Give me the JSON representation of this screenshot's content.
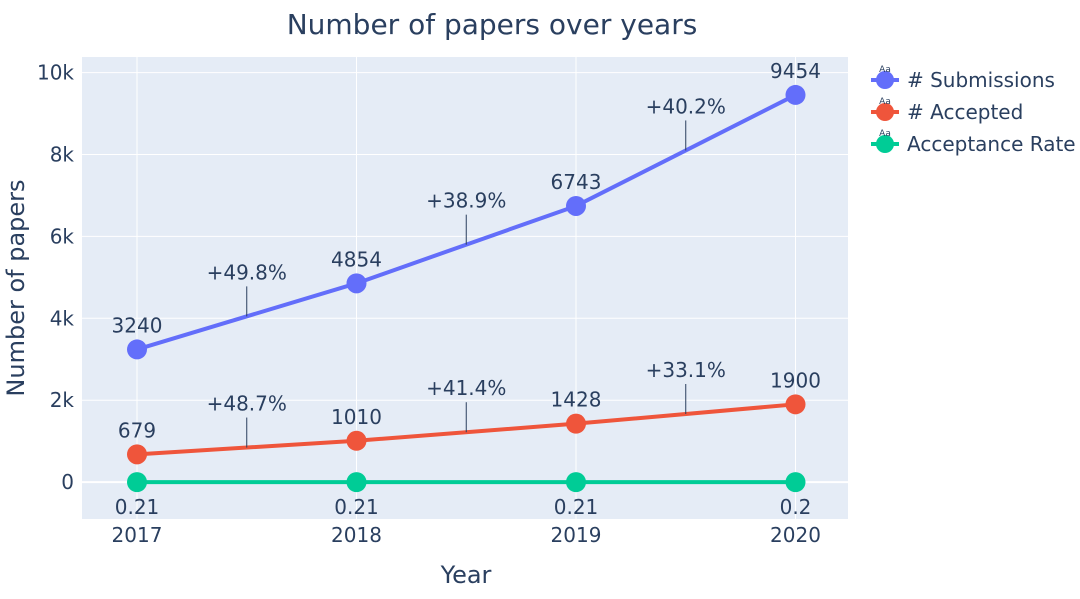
{
  "chart_data": {
    "type": "line",
    "title": "Number of papers over years",
    "xlabel": "Year",
    "ylabel": "Number of papers",
    "x": [
      "2017",
      "2018",
      "2019",
      "2020"
    ],
    "yticks": [
      {
        "value": 0,
        "label": "0"
      },
      {
        "value": 2000,
        "label": "2k"
      },
      {
        "value": 4000,
        "label": "4k"
      },
      {
        "value": 6000,
        "label": "6k"
      },
      {
        "value": 8000,
        "label": "8k"
      },
      {
        "value": 10000,
        "label": "10k"
      }
    ],
    "ylim": [
      -900,
      10380
    ],
    "grid": true,
    "legend_position": "right",
    "series": [
      {
        "name": "# Submissions",
        "color": "#636efa",
        "values": [
          3240,
          4854,
          6743,
          9454
        ],
        "labels": [
          "3240",
          "4854",
          "6743",
          "9454"
        ],
        "label_position": "above"
      },
      {
        "name": "# Accepted",
        "color": "#ef553b",
        "values": [
          679,
          1010,
          1428,
          1900
        ],
        "labels": [
          "679",
          "1010",
          "1428",
          "1900"
        ],
        "label_position": "above"
      },
      {
        "name": "Acceptance Rate",
        "color": "#00cc96",
        "values": [
          0.21,
          0.21,
          0.21,
          0.2
        ],
        "labels": [
          "0.21",
          "0.21",
          "0.21",
          "0.2"
        ],
        "label_position": "below"
      }
    ],
    "annotations": [
      {
        "series": 0,
        "between": [
          0,
          1
        ],
        "text": "+49.8%"
      },
      {
        "series": 0,
        "between": [
          1,
          2
        ],
        "text": "+38.9%"
      },
      {
        "series": 0,
        "between": [
          2,
          3
        ],
        "text": "+40.2%"
      },
      {
        "series": 1,
        "between": [
          0,
          1
        ],
        "text": "+48.7%"
      },
      {
        "series": 1,
        "between": [
          1,
          2
        ],
        "text": "+41.4%"
      },
      {
        "series": 1,
        "between": [
          2,
          3
        ],
        "text": "+33.1%"
      }
    ],
    "legend_marker_text": "Aa"
  }
}
